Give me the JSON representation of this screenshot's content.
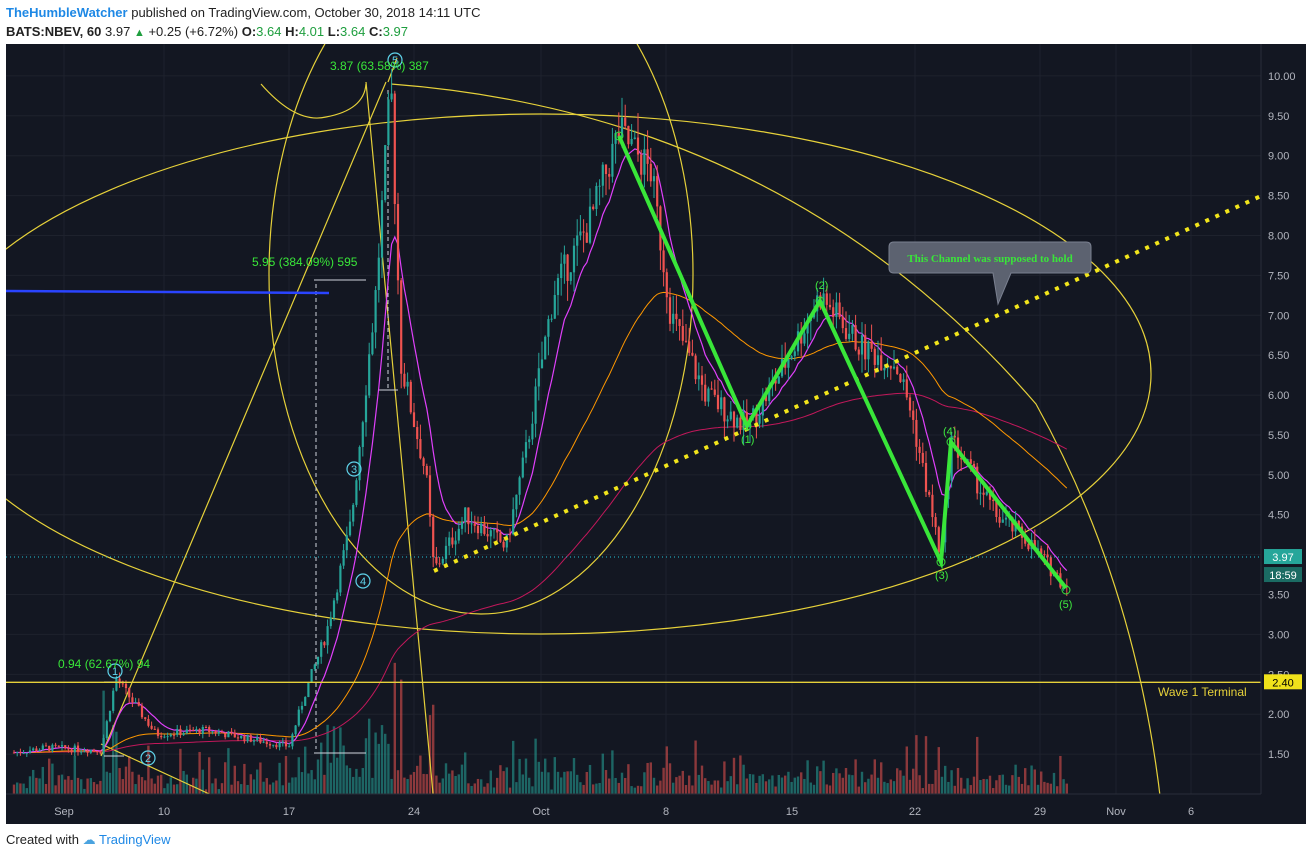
{
  "header": {
    "author": "TheHumbleWatcher",
    "published": "published on TradingView.com, October 30, 2018 14:11 UTC",
    "symbol": "BATS:NBEV, 60",
    "last": "3.97",
    "change": "+0.25 (+6.72%)",
    "o_label": "O:",
    "o": "3.64",
    "h_label": "H:",
    "h": "4.01",
    "l_label": "L:",
    "l": "3.64",
    "c_label": "C:",
    "c": "3.97"
  },
  "footer": {
    "created_with": "Created with",
    "brand": "TradingView"
  },
  "colors": {
    "background": "#131722",
    "up": "#26a69a",
    "down": "#ef5350",
    "wave": "#39e639",
    "fib": "#e6d13a",
    "ma_fast": "#e040fb",
    "ma_mid": "#ff9800",
    "ma_slow": "#c2185b",
    "blue_line": "#2a44ff"
  },
  "chart_data": {
    "type": "candlestick",
    "ylim": [
      1.0,
      10.4
    ],
    "y_ticks": [
      "1.50",
      "2.00",
      "2.50",
      "3.00",
      "3.50",
      "4.00",
      "4.50",
      "5.00",
      "5.50",
      "6.00",
      "6.50",
      "7.00",
      "7.50",
      "8.00",
      "8.50",
      "9.00",
      "9.50",
      "10.00"
    ],
    "x_ticks": [
      "Sep",
      "10",
      "17",
      "24",
      "Oct",
      "8",
      "15",
      "22",
      "29",
      "Nov",
      "6"
    ],
    "last_price_label": "3.97",
    "countdown_label": "18:59",
    "terminal_price_label": "2.40",
    "terminal_text": "Wave 1 Terminal",
    "terminal_level": 2.4,
    "last_price": 3.97,
    "price_path": [
      {
        "t": "Aug 31",
        "v": 1.52
      },
      {
        "t": "Sep 4",
        "v": 1.58
      },
      {
        "t": "Sep 6",
        "v": 1.55
      },
      {
        "t": "Sep 7",
        "v": 2.45
      },
      {
        "t": "Sep 10",
        "v": 1.75
      },
      {
        "t": "Sep 12",
        "v": 1.8
      },
      {
        "t": "Sep 14",
        "v": 1.7
      },
      {
        "t": "Sep 17",
        "v": 1.6
      },
      {
        "t": "Sep 18",
        "v": 2.3
      },
      {
        "t": "Sep 19",
        "v": 3.0
      },
      {
        "t": "Sep 20",
        "v": 4.4
      },
      {
        "t": "Sep 21",
        "v": 7.3
      },
      {
        "t": "Sep 21b",
        "v": 9.9
      },
      {
        "t": "Sep 22",
        "v": 6.4
      },
      {
        "t": "Sep 24",
        "v": 5.0
      },
      {
        "t": "Sep 25",
        "v": 3.8
      },
      {
        "t": "Sep 26",
        "v": 4.5
      },
      {
        "t": "Sep 28",
        "v": 4.1
      },
      {
        "t": "Oct 1",
        "v": 5.3
      },
      {
        "t": "Oct 2",
        "v": 7.3
      },
      {
        "t": "Oct 4",
        "v": 8.2
      },
      {
        "t": "Oct 5",
        "v": 9.3
      },
      {
        "t": "Oct 7",
        "v": 8.8
      },
      {
        "t": "Oct 9",
        "v": 7.0
      },
      {
        "t": "Oct 11",
        "v": 6.0
      },
      {
        "t": "Oct 12",
        "v": 5.6
      },
      {
        "t": "Oct 14",
        "v": 6.3
      },
      {
        "t": "Oct 16",
        "v": 7.25
      },
      {
        "t": "Oct 18",
        "v": 6.6
      },
      {
        "t": "Oct 20",
        "v": 6.4
      },
      {
        "t": "Oct 21",
        "v": 5.8
      },
      {
        "t": "Oct 23",
        "v": 3.95
      },
      {
        "t": "Oct 24",
        "v": 5.45
      },
      {
        "t": "Oct 26",
        "v": 4.5
      },
      {
        "t": "Oct 28",
        "v": 4.2
      },
      {
        "t": "Oct 30",
        "v": 3.6
      },
      {
        "t": "Oct 30b",
        "v": 3.97
      }
    ],
    "annotations": {
      "fib_top": "3.87 (63.58%) 387",
      "fib_mid": "5.95 (384.09%) 595",
      "fib_low": "0.94 (62.67%) 94",
      "callout": "This Channel was supposed to hold"
    },
    "wave_labels": {
      "w1": "1",
      "w2": "2",
      "w3": "3",
      "w4": "4",
      "w5": "5",
      "p1": "(1)",
      "p2": "(2)",
      "p3": "(3)",
      "p4": "(4)",
      "p5": "(5)"
    }
  }
}
